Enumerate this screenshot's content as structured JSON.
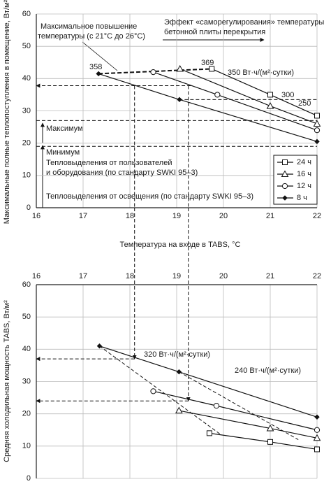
{
  "chart_data": [
    {
      "type": "line",
      "y_label": "Максимальные полные теплопоступления в помещение, Вт/м²",
      "x_label": "Температура на входе в TABS, °C",
      "xlim": [
        16,
        22
      ],
      "ylim": [
        0,
        60
      ],
      "xticks": [
        16,
        17,
        18,
        19,
        20,
        21,
        22
      ],
      "yticks": [
        0,
        10,
        20,
        30,
        40,
        50,
        60
      ],
      "grid": true,
      "xaxis_position": "bottom",
      "legend": "lower right",
      "series": [
        {
          "name": "24 ч",
          "marker": "square",
          "color": "#111111",
          "x": [
            19.75,
            21,
            22
          ],
          "values": [
            43,
            35,
            28.5
          ]
        },
        {
          "name": "16 ч",
          "marker": "triangle",
          "color": "#111111",
          "x": [
            19.07,
            21,
            22
          ],
          "values": [
            43,
            31.5,
            26
          ]
        },
        {
          "name": "12 ч",
          "marker": "circle",
          "color": "#111111",
          "x": [
            18.5,
            19.87,
            22
          ],
          "values": [
            42,
            35,
            24
          ]
        },
        {
          "name": "8 ч",
          "marker": "dot",
          "color": "#111111",
          "x": [
            17.33,
            19.06,
            22
          ],
          "values": [
            41.5,
            33.5,
            20.5
          ]
        }
      ],
      "guides": [
        {
          "x": [
            19.3,
            16
          ],
          "values": [
            37.8,
            37.8
          ],
          "arrow": true
        },
        {
          "x": [
            18.1,
            18.1
          ],
          "values": [
            37.8,
            0
          ]
        },
        {
          "x": [
            19.25,
            19.25
          ],
          "values": [
            37.8,
            0
          ]
        },
        {
          "x": [
            19.05,
            22
          ],
          "values": [
            33.5,
            33.5
          ]
        },
        {
          "x": [
            16,
            22
          ],
          "values": [
            27,
            27
          ]
        },
        {
          "x": [
            16,
            22
          ],
          "values": [
            19,
            19
          ]
        },
        {
          "x": [
            17.33,
            19.75
          ],
          "values": [
            41.5,
            43
          ],
          "bold": true
        }
      ],
      "annotations": [
        "Максимальное повышение",
        "температуры (с 21°C до 26°C)",
        "Эффект «саморегулирования» температуры",
        "бетонной плиты перекрытия",
        "358",
        "369",
        "350 Вт·ч/(м²·сутки)",
        "300",
        "250",
        "Максимум",
        "Минимум",
        "Тепловыделения от пользователей",
        "и оборудования (по стандарту SWKI 95–3)",
        "Тепловыделения от освещения (по стандарту SWKI 95–3)"
      ]
    },
    {
      "type": "line",
      "y_label": "Средняя холодильная мощность TABS, Вт/м²",
      "xlim": [
        16,
        22
      ],
      "ylim": [
        0,
        60
      ],
      "xticks": [
        16,
        17,
        18,
        19,
        20,
        21,
        22
      ],
      "yticks": [
        0,
        10,
        20,
        30,
        40,
        50,
        60
      ],
      "grid": true,
      "xaxis_position": "top",
      "series": [
        {
          "marker": "square",
          "color": "#111111",
          "x": [
            19.7,
            21,
            22
          ],
          "values": [
            14,
            11.3,
            9
          ]
        },
        {
          "marker": "triangle",
          "color": "#111111",
          "x": [
            19.05,
            21,
            22
          ],
          "values": [
            21,
            15.5,
            12.5
          ]
        },
        {
          "marker": "circle",
          "color": "#111111",
          "x": [
            18.5,
            19.85,
            22
          ],
          "values": [
            27,
            22.5,
            15
          ]
        },
        {
          "marker": "dot",
          "color": "#111111",
          "x": [
            17.35,
            19.05,
            22
          ],
          "values": [
            41,
            33,
            19
          ]
        }
      ],
      "guides": [
        {
          "x": [
            18.1,
            18.1
          ],
          "values": [
            60,
            37
          ],
          "arrow": true
        },
        {
          "x": [
            18.1,
            16
          ],
          "values": [
            37,
            37
          ],
          "arrow": true
        },
        {
          "x": [
            19.25,
            19.25
          ],
          "values": [
            60,
            24
          ],
          "arrow": true
        },
        {
          "x": [
            19.25,
            16
          ],
          "values": [
            24,
            24
          ],
          "arrow": true
        },
        {
          "x": [
            17.35,
            19.95
          ],
          "values": [
            41,
            13.5
          ]
        },
        {
          "x": [
            19.05,
            21.6
          ],
          "values": [
            33,
            12
          ]
        }
      ],
      "annotations": [
        "320 Вт·ч/(м²·сутки)",
        "240 Вт·ч/(м²·сутки)"
      ]
    }
  ]
}
